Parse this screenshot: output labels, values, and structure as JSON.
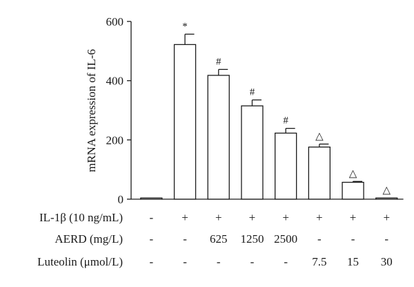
{
  "chart_data": {
    "type": "bar",
    "ylabel": "mRNA expression of IL-6",
    "ylim": [
      0,
      600
    ],
    "yticks": [
      0,
      200,
      400,
      600
    ],
    "grid": false,
    "values": [
      4,
      522,
      418,
      315,
      223,
      176,
      57,
      4
    ],
    "errors": [
      0,
      35,
      20,
      20,
      16,
      10,
      3,
      0
    ],
    "annotations": [
      "",
      "*",
      "#",
      "#",
      "#",
      "△",
      "△",
      "△"
    ],
    "treatment_rows": [
      {
        "label": "IL-1β (10 ng/mL)",
        "values": [
          "-",
          "+",
          "+",
          "+",
          "+",
          "+",
          "+",
          "+"
        ]
      },
      {
        "label": "AERD (mg/L)",
        "values": [
          "-",
          "-",
          "625",
          "1250",
          "2500",
          "-",
          "-",
          "-"
        ]
      },
      {
        "label": "Luteolin (μmol/L)",
        "values": [
          "-",
          "-",
          "-",
          "-",
          "-",
          "7.5",
          "15",
          "30"
        ]
      }
    ]
  }
}
